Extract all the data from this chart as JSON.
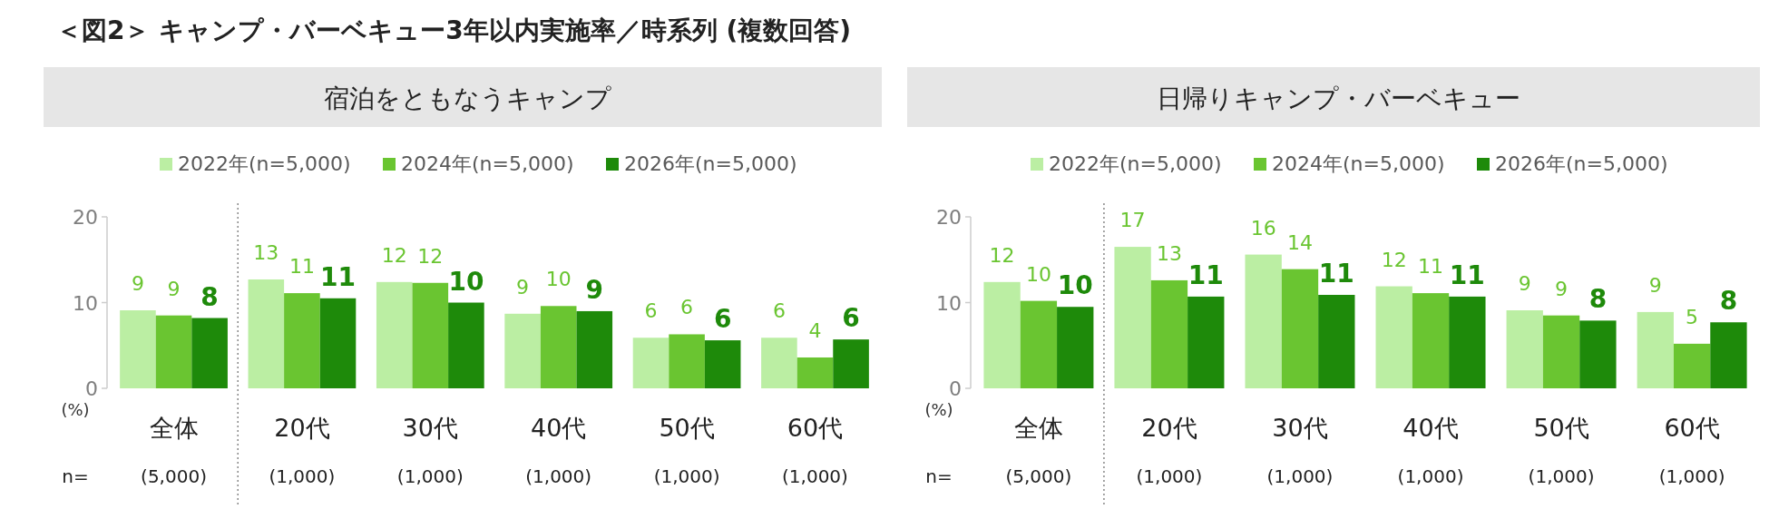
{
  "chart_data": [
    {
      "type": "bar",
      "title": "＜図2＞ キャンプ・バーベキュー3年以内実施率／時系列 (複数回答)",
      "subtitle": "宿泊をともなうキャンプ",
      "ylabel": "(%)",
      "categories": [
        "全体",
        "20代",
        "30代",
        "40代",
        "50代",
        "60代"
      ],
      "ylim": [
        0,
        20
      ],
      "yticks": [
        0,
        10,
        20
      ],
      "grid": false,
      "legend": "top",
      "series": [
        {
          "name": "2022年(n=5,000)",
          "color": "#bbeea3",
          "values": [
            9.1,
            12.7,
            12.4,
            8.7,
            5.9,
            5.9
          ],
          "value_labels": [
            "9",
            "13",
            "12",
            "9",
            "6",
            "6"
          ]
        },
        {
          "name": "2024年(n=5,000)",
          "color": "#6ac531",
          "values": [
            8.5,
            11.1,
            12.3,
            9.6,
            6.3,
            3.6
          ],
          "value_labels": [
            "9",
            "11",
            "12",
            "10",
            "6",
            "4"
          ]
        },
        {
          "name": "2026年(n=5,000)",
          "color": "#1e8a0a",
          "values": [
            8.2,
            10.5,
            10.0,
            9.0,
            5.6,
            5.7
          ],
          "value_labels": [
            "8",
            "11",
            "10",
            "9",
            "6",
            "6"
          ]
        }
      ],
      "annotations": [
        "n=",
        "(5,000)",
        "(1,000)",
        "(1,000)",
        "(1,000)",
        "(1,000)",
        "(1,000)"
      ]
    },
    {
      "type": "bar",
      "subtitle": "日帰りキャンプ・バーベキュー",
      "ylabel": "(%)",
      "categories": [
        "全体",
        "20代",
        "30代",
        "40代",
        "50代",
        "60代"
      ],
      "ylim": [
        0,
        20
      ],
      "yticks": [
        0,
        10,
        20
      ],
      "grid": false,
      "legend": "top",
      "series": [
        {
          "name": "2022年(n=5,000)",
          "color": "#bbeea3",
          "values": [
            12.4,
            16.5,
            15.6,
            11.9,
            9.1,
            8.9
          ],
          "value_labels": [
            "12",
            "17",
            "16",
            "12",
            "9",
            "9"
          ]
        },
        {
          "name": "2024年(n=5,000)",
          "color": "#6ac531",
          "values": [
            10.2,
            12.6,
            13.9,
            11.1,
            8.5,
            5.2
          ],
          "value_labels": [
            "10",
            "13",
            "14",
            "11",
            "9",
            "5"
          ]
        },
        {
          "name": "2026年(n=5,000)",
          "color": "#1e8a0a",
          "values": [
            9.5,
            10.7,
            10.9,
            10.7,
            7.9,
            7.7
          ],
          "value_labels": [
            "10",
            "11",
            "11",
            "11",
            "8",
            "8"
          ]
        }
      ],
      "annotations": [
        "n=",
        "(5,000)",
        "(1,000)",
        "(1,000)",
        "(1,000)",
        "(1,000)",
        "(1,000)"
      ]
    }
  ]
}
